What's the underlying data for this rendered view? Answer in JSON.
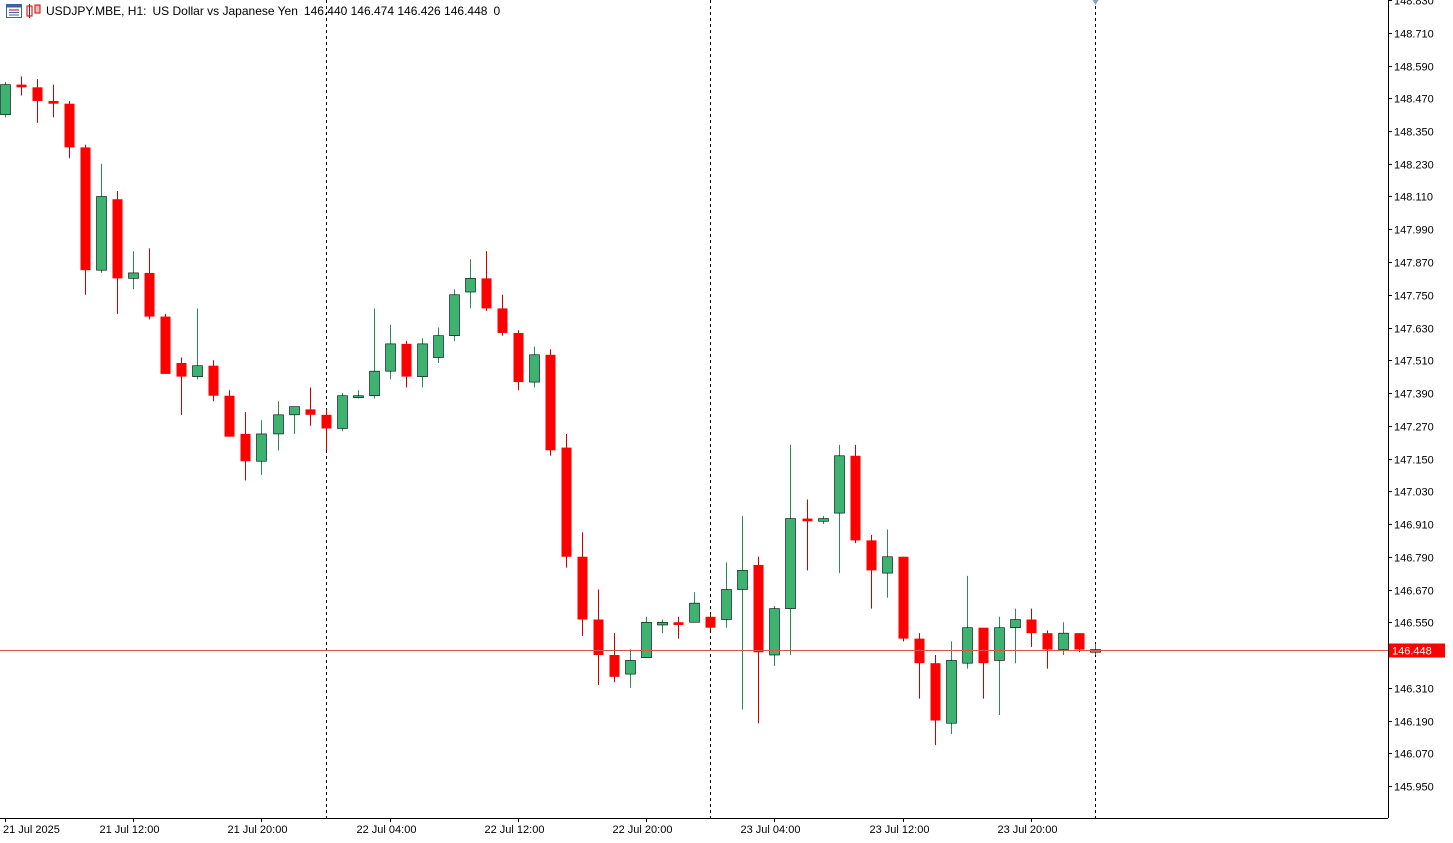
{
  "header": {
    "symbol": "USDJPY.MBE, H1:",
    "description": "US Dollar vs Japanese Yen",
    "ohlc": "146.440 146.474 146.426 146.448",
    "extra": "0"
  },
  "colors": {
    "bull": "#3cb371",
    "bear": "#ff0000",
    "wick_bull": "#2e8b57",
    "wick_bear": "#cc0000",
    "price_line": "#d9534f",
    "price_tag_bg": "#ff0000"
  },
  "chart_data": {
    "type": "candlestick",
    "title": "",
    "xlabel": "",
    "ylabel": "",
    "ylim": [
      145.9,
      148.85
    ],
    "yticks": [
      "148.830",
      "148.710",
      "148.590",
      "148.470",
      "148.350",
      "148.230",
      "148.110",
      "147.990",
      "147.870",
      "147.750",
      "147.630",
      "147.510",
      "147.390",
      "147.270",
      "147.150",
      "147.030",
      "146.910",
      "146.790",
      "146.670",
      "146.550",
      "146.430",
      "146.310",
      "146.190",
      "146.070",
      "145.950"
    ],
    "xticks": [
      {
        "index": 0,
        "label": "21 Jul 2025"
      },
      {
        "index": 8,
        "label": "21 Jul 12:00"
      },
      {
        "index": 16,
        "label": "21 Jul 20:00"
      },
      {
        "index": 24,
        "label": "22 Jul 04:00"
      },
      {
        "index": 32,
        "label": "22 Jul 12:00"
      },
      {
        "index": 40,
        "label": "22 Jul 20:00"
      },
      {
        "index": 48,
        "label": "23 Jul 04:00"
      },
      {
        "index": 56,
        "label": "23 Jul 12:00"
      },
      {
        "index": 64,
        "label": "23 Jul 20:00"
      }
    ],
    "separators": [
      20,
      44,
      68
    ],
    "current_price": "146.448",
    "candles": [
      {
        "o": 148.41,
        "h": 148.53,
        "l": 148.4,
        "c": 148.52
      },
      {
        "o": 148.52,
        "h": 148.55,
        "l": 148.48,
        "c": 148.51
      },
      {
        "o": 148.51,
        "h": 148.54,
        "l": 148.38,
        "c": 148.46
      },
      {
        "o": 148.46,
        "h": 148.52,
        "l": 148.4,
        "c": 148.45
      },
      {
        "o": 148.45,
        "h": 148.46,
        "l": 148.25,
        "c": 148.29
      },
      {
        "o": 148.29,
        "h": 148.3,
        "l": 147.75,
        "c": 147.84
      },
      {
        "o": 147.84,
        "h": 148.23,
        "l": 147.83,
        "c": 148.11
      },
      {
        "o": 148.1,
        "h": 148.13,
        "l": 147.68,
        "c": 147.81
      },
      {
        "o": 147.81,
        "h": 147.91,
        "l": 147.77,
        "c": 147.83
      },
      {
        "o": 147.83,
        "h": 147.92,
        "l": 147.66,
        "c": 147.67
      },
      {
        "o": 147.67,
        "h": 147.68,
        "l": 147.46,
        "c": 147.46
      },
      {
        "o": 147.5,
        "h": 147.52,
        "l": 147.31,
        "c": 147.45
      },
      {
        "o": 147.45,
        "h": 147.7,
        "l": 147.44,
        "c": 147.49
      },
      {
        "o": 147.49,
        "h": 147.51,
        "l": 147.36,
        "c": 147.38
      },
      {
        "o": 147.38,
        "h": 147.4,
        "l": 147.23,
        "c": 147.23
      },
      {
        "o": 147.24,
        "h": 147.32,
        "l": 147.07,
        "c": 147.14
      },
      {
        "o": 147.14,
        "h": 147.29,
        "l": 147.09,
        "c": 147.24
      },
      {
        "o": 147.24,
        "h": 147.36,
        "l": 147.18,
        "c": 147.31
      },
      {
        "o": 147.31,
        "h": 147.34,
        "l": 147.24,
        "c": 147.34
      },
      {
        "o": 147.33,
        "h": 147.41,
        "l": 147.27,
        "c": 147.31
      },
      {
        "o": 147.31,
        "h": 147.33,
        "l": 147.18,
        "c": 147.26
      },
      {
        "o": 147.26,
        "h": 147.39,
        "l": 147.25,
        "c": 147.38
      },
      {
        "o": 147.38,
        "h": 147.4,
        "l": 147.37,
        "c": 147.38
      },
      {
        "o": 147.38,
        "h": 147.7,
        "l": 147.37,
        "c": 147.47
      },
      {
        "o": 147.47,
        "h": 147.64,
        "l": 147.44,
        "c": 147.57
      },
      {
        "o": 147.57,
        "h": 147.58,
        "l": 147.41,
        "c": 147.45
      },
      {
        "o": 147.45,
        "h": 147.59,
        "l": 147.41,
        "c": 147.57
      },
      {
        "o": 147.52,
        "h": 147.63,
        "l": 147.5,
        "c": 147.6
      },
      {
        "o": 147.6,
        "h": 147.77,
        "l": 147.58,
        "c": 147.75
      },
      {
        "o": 147.76,
        "h": 147.88,
        "l": 147.7,
        "c": 147.81
      },
      {
        "o": 147.81,
        "h": 147.91,
        "l": 147.69,
        "c": 147.7
      },
      {
        "o": 147.7,
        "h": 147.75,
        "l": 147.6,
        "c": 147.61
      },
      {
        "o": 147.61,
        "h": 147.62,
        "l": 147.4,
        "c": 147.43
      },
      {
        "o": 147.43,
        "h": 147.56,
        "l": 147.41,
        "c": 147.53
      },
      {
        "o": 147.53,
        "h": 147.55,
        "l": 147.16,
        "c": 147.18
      },
      {
        "o": 147.19,
        "h": 147.24,
        "l": 146.75,
        "c": 146.79
      },
      {
        "o": 146.79,
        "h": 146.88,
        "l": 146.5,
        "c": 146.56
      },
      {
        "o": 146.56,
        "h": 146.67,
        "l": 146.32,
        "c": 146.43
      },
      {
        "o": 146.43,
        "h": 146.51,
        "l": 146.33,
        "c": 146.35
      },
      {
        "o": 146.36,
        "h": 146.45,
        "l": 146.31,
        "c": 146.41
      },
      {
        "o": 146.42,
        "h": 146.57,
        "l": 146.42,
        "c": 146.55
      },
      {
        "o": 146.54,
        "h": 146.56,
        "l": 146.51,
        "c": 146.55
      },
      {
        "o": 146.55,
        "h": 146.57,
        "l": 146.49,
        "c": 146.54
      },
      {
        "o": 146.55,
        "h": 146.66,
        "l": 146.55,
        "c": 146.62
      },
      {
        "o": 146.57,
        "h": 146.58,
        "l": 146.52,
        "c": 146.53
      },
      {
        "o": 146.56,
        "h": 146.77,
        "l": 146.53,
        "c": 146.67
      },
      {
        "o": 146.67,
        "h": 146.94,
        "l": 146.23,
        "c": 146.74
      },
      {
        "o": 146.76,
        "h": 146.79,
        "l": 146.18,
        "c": 146.44
      },
      {
        "o": 146.43,
        "h": 146.61,
        "l": 146.39,
        "c": 146.6
      },
      {
        "o": 146.6,
        "h": 147.2,
        "l": 146.43,
        "c": 146.93
      },
      {
        "o": 146.93,
        "h": 147.0,
        "l": 146.74,
        "c": 146.92
      },
      {
        "o": 146.92,
        "h": 146.94,
        "l": 146.91,
        "c": 146.93
      },
      {
        "o": 146.95,
        "h": 147.2,
        "l": 146.73,
        "c": 147.16
      },
      {
        "o": 147.16,
        "h": 147.2,
        "l": 146.84,
        "c": 146.85
      },
      {
        "o": 146.85,
        "h": 146.87,
        "l": 146.6,
        "c": 146.74
      },
      {
        "o": 146.73,
        "h": 146.89,
        "l": 146.64,
        "c": 146.79
      },
      {
        "o": 146.79,
        "h": 146.79,
        "l": 146.48,
        "c": 146.49
      },
      {
        "o": 146.49,
        "h": 146.51,
        "l": 146.27,
        "c": 146.4
      },
      {
        "o": 146.4,
        "h": 146.43,
        "l": 146.1,
        "c": 146.19
      },
      {
        "o": 146.18,
        "h": 146.48,
        "l": 146.14,
        "c": 146.41
      },
      {
        "o": 146.4,
        "h": 146.72,
        "l": 146.38,
        "c": 146.53
      },
      {
        "o": 146.53,
        "h": 146.53,
        "l": 146.27,
        "c": 146.4
      },
      {
        "o": 146.41,
        "h": 146.57,
        "l": 146.21,
        "c": 146.53
      },
      {
        "o": 146.53,
        "h": 146.6,
        "l": 146.4,
        "c": 146.56
      },
      {
        "o": 146.56,
        "h": 146.6,
        "l": 146.46,
        "c": 146.51
      },
      {
        "o": 146.51,
        "h": 146.52,
        "l": 146.38,
        "c": 146.45
      },
      {
        "o": 146.45,
        "h": 146.55,
        "l": 146.43,
        "c": 146.51
      },
      {
        "o": 146.51,
        "h": 146.51,
        "l": 146.44,
        "c": 146.45
      },
      {
        "o": 146.44,
        "h": 146.47,
        "l": 146.43,
        "c": 146.45
      }
    ]
  }
}
